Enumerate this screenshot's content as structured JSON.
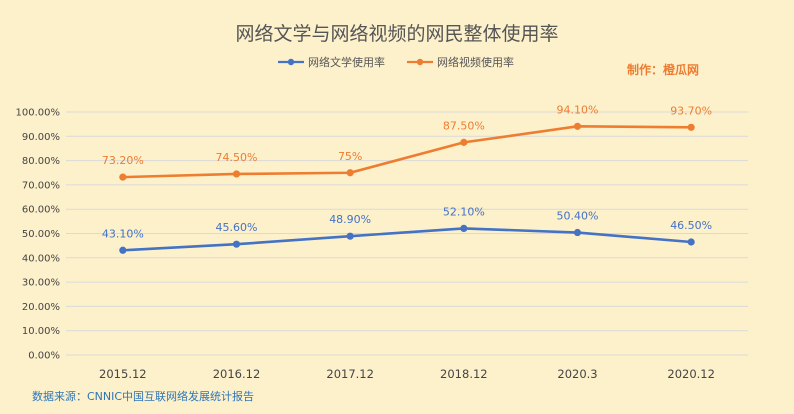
{
  "chart_data": {
    "type": "line",
    "title": "网络文学与网络视频的网民整体使用率",
    "credit": "制作：橙瓜网",
    "source": "数据来源：CNNIC中国互联网络发展统计报告",
    "categories": [
      "2015.12",
      "2016.12",
      "2017.12",
      "2018.12",
      "2020.3",
      "2020.12"
    ],
    "series": [
      {
        "name": "网络文学使用率",
        "color": "#4472c4",
        "values": [
          43.1,
          45.6,
          48.9,
          52.1,
          50.4,
          46.5
        ],
        "labels": [
          "43.10%",
          "45.60%",
          "48.90%",
          "52.10%",
          "50.40%",
          "46.50%"
        ]
      },
      {
        "name": "网络视频使用率",
        "color": "#ed7d31",
        "values": [
          73.2,
          74.5,
          75,
          87.5,
          94.1,
          93.7
        ],
        "labels": [
          "73.20%",
          "74.50%",
          "75%",
          "87.50%",
          "94.10%",
          "93.70%"
        ]
      }
    ],
    "ylim": [
      0,
      100
    ],
    "yticks": [
      "0.00%",
      "10.00%",
      "20.00%",
      "30.00%",
      "40.00%",
      "50.00%",
      "60.00%",
      "70.00%",
      "80.00%",
      "90.00%",
      "100.00%"
    ],
    "legend_position": "top",
    "grid": true,
    "colors": {
      "background": "#fdf1cc",
      "grid": "#d9d9d9",
      "credit": "#ed7d31",
      "source": "#2e75b6"
    }
  }
}
